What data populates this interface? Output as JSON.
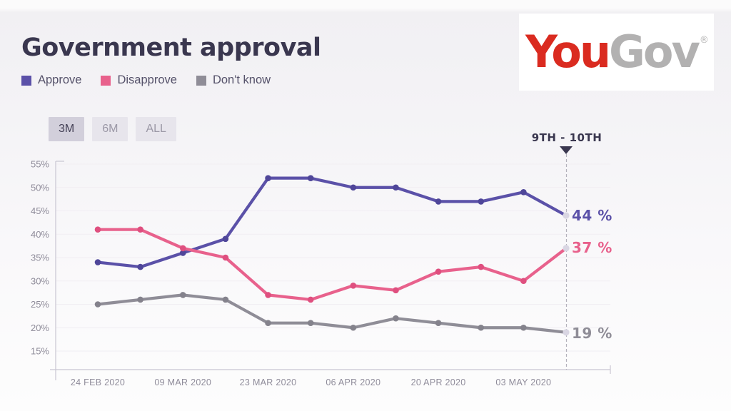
{
  "page": {
    "title": "Government approval"
  },
  "brand": {
    "name_part1": "You",
    "name_part2": "Gov",
    "registered_mark": "®",
    "color_part1": "#da2b20",
    "color_part2": "#b2b1b1"
  },
  "range_buttons": [
    {
      "label": "3M",
      "active": true
    },
    {
      "label": "6M",
      "active": false
    },
    {
      "label": "ALL",
      "active": false
    }
  ],
  "annotation": {
    "label": "9TH - 10TH"
  },
  "chart_data": {
    "type": "line",
    "title": "Government approval",
    "x": [
      "24 FEB 2020",
      "02 MAR 2020",
      "09 MAR 2020",
      "16 MAR 2020",
      "23 MAR 2020",
      "30 MAR 2020",
      "06 APR 2020",
      "13 APR 2020",
      "20 APR 2020",
      "27 APR 2020",
      "03 MAY 2020",
      "10 MAY 2020"
    ],
    "x_axis_tick_labels": [
      "24 FEB 2020",
      "09 MAR 2020",
      "23 MAR 2020",
      "06 APR 2020",
      "20 APR 2020",
      "03 MAY 2020"
    ],
    "x_axis_tick_indices": [
      0,
      2,
      4,
      6,
      8,
      10
    ],
    "y_ticks": [
      55,
      50,
      45,
      40,
      35,
      30,
      25,
      20,
      15
    ],
    "y_tick_suffix": "%",
    "ylim": [
      13,
      56
    ],
    "grid": "horizontal",
    "legend_position": "top-left",
    "series": [
      {
        "name": "Approve",
        "color": "#5b51a8",
        "marker_color": "#4f4699",
        "values": [
          34,
          33,
          36,
          39,
          52,
          52,
          50,
          50,
          47,
          47,
          49,
          44
        ],
        "end_label": "44 %"
      },
      {
        "name": "Disapprove",
        "color": "#e8618c",
        "marker_color": "#df4f7f",
        "values": [
          41,
          41,
          37,
          35,
          27,
          26,
          29,
          28,
          32,
          33,
          30,
          37
        ],
        "end_label": "37 %"
      },
      {
        "name": "Don't know",
        "color": "#8f8d97",
        "marker_color": "#84828c",
        "values": [
          25,
          26,
          27,
          26,
          21,
          21,
          20,
          22,
          21,
          20,
          20,
          19
        ],
        "end_label": "19 %"
      }
    ],
    "end_marker_color": "#d9d6e3",
    "grid_color": "#f1eef3",
    "axis_color": "#c9c6d2",
    "tick_label_color": "#8f8c9a",
    "dashed_line_color": "#b3b1bb"
  }
}
